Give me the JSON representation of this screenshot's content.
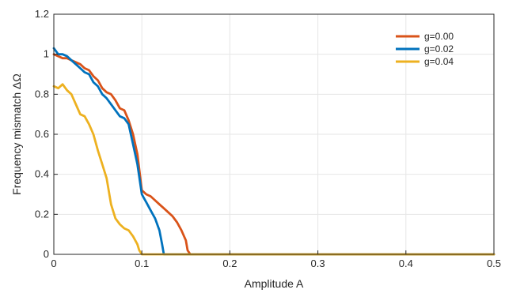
{
  "chart_data": {
    "type": "line",
    "title": "",
    "xlabel": "Amplitude A",
    "ylabel": "Frequency mismatch  ΔΩ",
    "xlim": [
      0,
      0.5
    ],
    "ylim": [
      0,
      1.2
    ],
    "xticks": [
      0,
      0.1,
      0.2,
      0.3,
      0.4,
      0.5
    ],
    "xtick_labels": [
      "0",
      "0.1",
      "0.2",
      "0.3",
      "0.4",
      "0.5"
    ],
    "yticks": [
      0,
      0.2,
      0.4,
      0.6,
      0.8,
      1,
      1.2
    ],
    "ytick_labels": [
      "0",
      "0.2",
      "0.4",
      "0.6",
      "0.8",
      "1",
      "1.2"
    ],
    "grid": true,
    "legend_position": "top-right",
    "series": [
      {
        "name": "g=0.00",
        "color": "#D95319",
        "x": [
          0,
          0.005,
          0.01,
          0.015,
          0.02,
          0.025,
          0.03,
          0.035,
          0.04,
          0.045,
          0.05,
          0.055,
          0.06,
          0.065,
          0.07,
          0.075,
          0.08,
          0.085,
          0.09,
          0.095,
          0.1,
          0.105,
          0.11,
          0.115,
          0.12,
          0.125,
          0.13,
          0.135,
          0.14,
          0.145,
          0.15,
          0.152,
          0.155,
          0.5
        ],
        "y": [
          1.0,
          0.99,
          0.98,
          0.98,
          0.97,
          0.96,
          0.95,
          0.93,
          0.92,
          0.89,
          0.87,
          0.83,
          0.81,
          0.8,
          0.77,
          0.73,
          0.72,
          0.67,
          0.6,
          0.5,
          0.32,
          0.3,
          0.29,
          0.27,
          0.25,
          0.23,
          0.21,
          0.19,
          0.16,
          0.12,
          0.07,
          0.02,
          0.0,
          0.0
        ]
      },
      {
        "name": "g=0.02",
        "color": "#0072BD",
        "x": [
          0,
          0.005,
          0.01,
          0.015,
          0.02,
          0.025,
          0.03,
          0.035,
          0.04,
          0.045,
          0.05,
          0.055,
          0.06,
          0.065,
          0.07,
          0.075,
          0.08,
          0.085,
          0.09,
          0.095,
          0.1,
          0.105,
          0.11,
          0.115,
          0.12,
          0.123,
          0.125,
          0.5
        ],
        "y": [
          1.03,
          1.0,
          1.0,
          0.99,
          0.97,
          0.95,
          0.93,
          0.91,
          0.9,
          0.86,
          0.84,
          0.8,
          0.78,
          0.75,
          0.72,
          0.69,
          0.68,
          0.65,
          0.55,
          0.45,
          0.3,
          0.26,
          0.22,
          0.18,
          0.12,
          0.05,
          0.0,
          0.0
        ]
      },
      {
        "name": "g=0.04",
        "color": "#EDB120",
        "x": [
          0,
          0.005,
          0.01,
          0.015,
          0.02,
          0.025,
          0.03,
          0.035,
          0.04,
          0.045,
          0.05,
          0.055,
          0.06,
          0.065,
          0.07,
          0.075,
          0.08,
          0.085,
          0.09,
          0.095,
          0.097,
          0.1,
          0.5
        ],
        "y": [
          0.84,
          0.83,
          0.85,
          0.82,
          0.8,
          0.75,
          0.7,
          0.69,
          0.65,
          0.6,
          0.52,
          0.45,
          0.38,
          0.25,
          0.18,
          0.15,
          0.13,
          0.12,
          0.09,
          0.05,
          0.02,
          0.0,
          0.0
        ]
      }
    ]
  }
}
